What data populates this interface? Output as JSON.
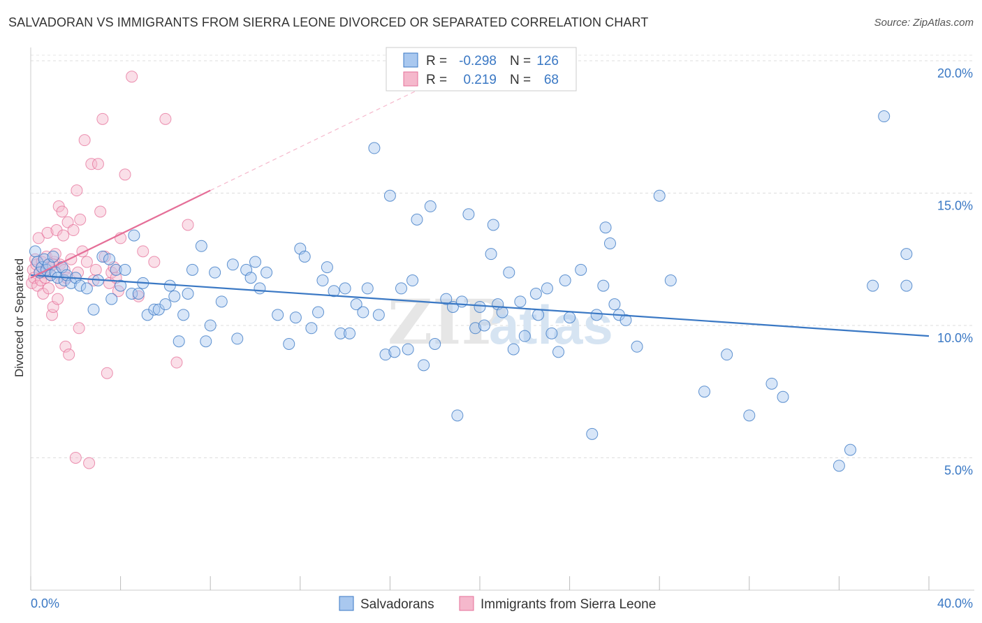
{
  "header": {
    "title": "SALVADORAN VS IMMIGRANTS FROM SIERRA LEONE DIVORCED OR SEPARATED CORRELATION CHART",
    "source_label": "Source:",
    "source_value": "ZipAtlas.com"
  },
  "watermark": {
    "zip": "ZIP",
    "atlas": "atlas"
  },
  "legend_top": {
    "rows": [
      {
        "r_label": "R =",
        "r_value": "-0.298",
        "n_label": "N =",
        "n_value": "126"
      },
      {
        "r_label": "R =",
        "r_value": "0.219",
        "n_label": "N =",
        "n_value": "68"
      }
    ]
  },
  "legend_bottom": {
    "items": [
      {
        "label": "Salvadorans"
      },
      {
        "label": "Immigrants from Sierra Leone"
      }
    ]
  },
  "chart_data": {
    "type": "scatter",
    "title": "SALVADORAN VS IMMIGRANTS FROM SIERRA LEONE DIVORCED OR SEPARATED CORRELATION CHART",
    "xlabel": "",
    "ylabel": "Divorced or Separated",
    "xlim": [
      0,
      40
    ],
    "ylim": [
      0,
      20.5
    ],
    "x_tick_labels": [
      "0.0%",
      "40.0%"
    ],
    "y_ticks": [
      5,
      10,
      15,
      20
    ],
    "y_tick_labels": [
      "5.0%",
      "10.0%",
      "15.0%",
      "20.0%"
    ],
    "grid": true,
    "colors": {
      "salvadorans": "#3a78c4",
      "salvadorans_fill": "#a9c8ef",
      "sierra_leone": "#e56f98",
      "sierra_leone_fill": "#f5b8cc"
    },
    "series": [
      {
        "name": "Salvadorans",
        "r": -0.298,
        "n": 126,
        "trend": {
          "x": [
            0,
            40
          ],
          "y": [
            11.9,
            9.6
          ]
        },
        "points": [
          [
            0.2,
            12.8
          ],
          [
            0.3,
            12.4
          ],
          [
            0.4,
            12.0
          ],
          [
            0.5,
            12.2
          ],
          [
            0.6,
            12.5
          ],
          [
            0.7,
            12.1
          ],
          [
            0.8,
            12.3
          ],
          [
            0.9,
            11.9
          ],
          [
            1.0,
            12.6
          ],
          [
            1.1,
            12.0
          ],
          [
            1.2,
            11.8
          ],
          [
            1.4,
            12.2
          ],
          [
            1.5,
            11.7
          ],
          [
            1.6,
            11.9
          ],
          [
            1.8,
            11.6
          ],
          [
            2.0,
            11.8
          ],
          [
            2.2,
            11.5
          ],
          [
            2.5,
            11.4
          ],
          [
            2.8,
            10.6
          ],
          [
            3.0,
            11.7
          ],
          [
            3.2,
            12.6
          ],
          [
            3.5,
            12.5
          ],
          [
            3.6,
            11.0
          ],
          [
            3.8,
            12.1
          ],
          [
            4.0,
            11.5
          ],
          [
            4.2,
            12.1
          ],
          [
            4.5,
            11.2
          ],
          [
            4.6,
            13.4
          ],
          [
            4.8,
            11.2
          ],
          [
            5.0,
            11.6
          ],
          [
            5.2,
            10.4
          ],
          [
            5.5,
            10.6
          ],
          [
            5.7,
            10.6
          ],
          [
            6.0,
            10.8
          ],
          [
            6.2,
            11.5
          ],
          [
            6.4,
            11.1
          ],
          [
            6.6,
            9.4
          ],
          [
            6.8,
            10.4
          ],
          [
            7.0,
            11.2
          ],
          [
            7.2,
            12.1
          ],
          [
            7.6,
            13.0
          ],
          [
            7.8,
            9.4
          ],
          [
            8.0,
            10.0
          ],
          [
            8.2,
            12.0
          ],
          [
            8.5,
            10.9
          ],
          [
            9.0,
            12.3
          ],
          [
            9.2,
            9.5
          ],
          [
            9.6,
            12.1
          ],
          [
            9.8,
            11.8
          ],
          [
            10.0,
            12.4
          ],
          [
            10.2,
            11.4
          ],
          [
            10.5,
            12.0
          ],
          [
            11.0,
            10.4
          ],
          [
            11.5,
            9.3
          ],
          [
            11.8,
            10.3
          ],
          [
            12.0,
            12.9
          ],
          [
            12.2,
            12.6
          ],
          [
            12.5,
            9.9
          ],
          [
            12.8,
            10.5
          ],
          [
            13.0,
            11.7
          ],
          [
            13.2,
            12.2
          ],
          [
            13.5,
            11.3
          ],
          [
            13.8,
            9.7
          ],
          [
            14.0,
            11.4
          ],
          [
            14.2,
            9.7
          ],
          [
            14.5,
            10.8
          ],
          [
            14.8,
            10.5
          ],
          [
            15.0,
            11.4
          ],
          [
            15.3,
            16.7
          ],
          [
            15.5,
            10.4
          ],
          [
            15.8,
            8.9
          ],
          [
            16.0,
            14.9
          ],
          [
            16.2,
            9.0
          ],
          [
            16.5,
            11.4
          ],
          [
            16.8,
            9.1
          ],
          [
            17.0,
            11.7
          ],
          [
            17.2,
            14.0
          ],
          [
            17.5,
            8.5
          ],
          [
            17.8,
            14.5
          ],
          [
            18.0,
            9.3
          ],
          [
            18.5,
            11.0
          ],
          [
            18.8,
            10.7
          ],
          [
            19.0,
            6.6
          ],
          [
            19.2,
            10.9
          ],
          [
            19.5,
            14.2
          ],
          [
            19.8,
            9.9
          ],
          [
            20.0,
            10.7
          ],
          [
            20.2,
            10.0
          ],
          [
            20.5,
            12.7
          ],
          [
            20.6,
            13.8
          ],
          [
            20.8,
            10.8
          ],
          [
            21.0,
            10.5
          ],
          [
            21.3,
            12.0
          ],
          [
            21.5,
            9.1
          ],
          [
            21.8,
            10.9
          ],
          [
            22.0,
            9.6
          ],
          [
            22.5,
            11.2
          ],
          [
            22.6,
            10.4
          ],
          [
            23.0,
            11.4
          ],
          [
            23.2,
            9.7
          ],
          [
            23.5,
            9.0
          ],
          [
            23.8,
            11.7
          ],
          [
            24.0,
            10.3
          ],
          [
            24.5,
            12.1
          ],
          [
            25.0,
            5.9
          ],
          [
            25.2,
            10.4
          ],
          [
            25.5,
            11.5
          ],
          [
            25.6,
            13.7
          ],
          [
            25.8,
            13.1
          ],
          [
            26.0,
            10.8
          ],
          [
            26.2,
            10.4
          ],
          [
            26.5,
            10.2
          ],
          [
            27.0,
            9.2
          ],
          [
            28.0,
            14.9
          ],
          [
            28.5,
            11.7
          ],
          [
            30.0,
            7.5
          ],
          [
            31.0,
            8.9
          ],
          [
            32.0,
            6.6
          ],
          [
            33.0,
            7.8
          ],
          [
            33.5,
            7.3
          ],
          [
            36.0,
            4.7
          ],
          [
            36.5,
            5.3
          ],
          [
            37.5,
            11.5
          ],
          [
            38.0,
            17.9
          ],
          [
            39.0,
            12.7
          ],
          [
            39.0,
            11.5
          ]
        ]
      },
      {
        "name": "Immigrants from Sierra Leone",
        "r": 0.219,
        "n": 68,
        "trend": {
          "x": [
            0,
            8
          ],
          "y": [
            11.8,
            15.1
          ]
        },
        "trend_dashed": {
          "x": [
            8,
            17.5
          ],
          "y": [
            15.1,
            19.0
          ]
        },
        "points": [
          [
            0.05,
            11.6
          ],
          [
            0.1,
            12.1
          ],
          [
            0.15,
            11.8
          ],
          [
            0.2,
            12.5
          ],
          [
            0.25,
            12.3
          ],
          [
            0.3,
            11.5
          ],
          [
            0.35,
            13.3
          ],
          [
            0.4,
            12.0
          ],
          [
            0.45,
            11.7
          ],
          [
            0.5,
            12.4
          ],
          [
            0.55,
            11.2
          ],
          [
            0.6,
            12.0
          ],
          [
            0.65,
            11.8
          ],
          [
            0.7,
            12.6
          ],
          [
            0.75,
            13.5
          ],
          [
            0.8,
            11.4
          ],
          [
            0.85,
            12.2
          ],
          [
            0.9,
            11.9
          ],
          [
            0.95,
            10.4
          ],
          [
            1.0,
            10.7
          ],
          [
            1.05,
            12.4
          ],
          [
            1.1,
            12.7
          ],
          [
            1.15,
            13.6
          ],
          [
            1.2,
            11.0
          ],
          [
            1.25,
            14.5
          ],
          [
            1.3,
            12.3
          ],
          [
            1.35,
            11.6
          ],
          [
            1.4,
            14.3
          ],
          [
            1.45,
            13.4
          ],
          [
            1.5,
            12.1
          ],
          [
            1.55,
            9.2
          ],
          [
            1.6,
            11.8
          ],
          [
            1.65,
            13.9
          ],
          [
            1.7,
            8.9
          ],
          [
            1.8,
            12.5
          ],
          [
            1.9,
            13.6
          ],
          [
            2.0,
            5.0
          ],
          [
            2.05,
            15.1
          ],
          [
            2.1,
            12.0
          ],
          [
            2.15,
            9.9
          ],
          [
            2.2,
            14.0
          ],
          [
            2.3,
            12.8
          ],
          [
            2.4,
            17.0
          ],
          [
            2.5,
            12.4
          ],
          [
            2.6,
            4.8
          ],
          [
            2.7,
            16.1
          ],
          [
            2.8,
            11.7
          ],
          [
            2.9,
            12.1
          ],
          [
            3.0,
            16.1
          ],
          [
            3.1,
            14.3
          ],
          [
            3.2,
            17.8
          ],
          [
            3.3,
            12.6
          ],
          [
            3.4,
            8.2
          ],
          [
            3.5,
            11.6
          ],
          [
            3.6,
            12.0
          ],
          [
            3.7,
            12.2
          ],
          [
            3.8,
            11.8
          ],
          [
            3.9,
            11.3
          ],
          [
            4.0,
            13.3
          ],
          [
            4.2,
            15.7
          ],
          [
            4.5,
            19.4
          ],
          [
            4.8,
            11.1
          ],
          [
            5.0,
            12.8
          ],
          [
            5.5,
            12.4
          ],
          [
            6.0,
            17.8
          ],
          [
            6.5,
            8.6
          ],
          [
            7.0,
            13.8
          ],
          [
            1.0,
            12.3
          ]
        ]
      }
    ]
  }
}
